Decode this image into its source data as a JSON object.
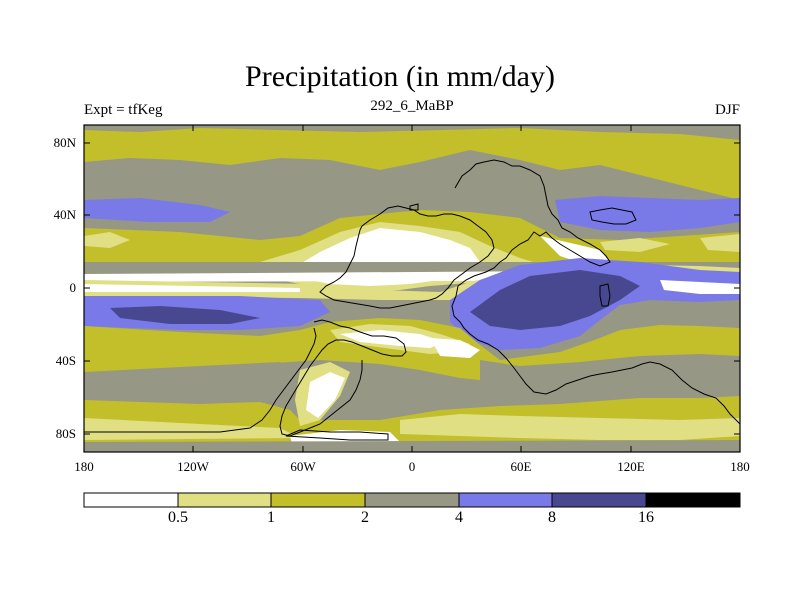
{
  "title": "Precipitation (in mm/day)",
  "experiment_label": "Expt = tfKeg",
  "case_label": "292_6_MaBP",
  "season_label": "DJF",
  "map": {
    "projection": "cylindrical equidistant",
    "lon_range": [
      -180,
      180
    ],
    "lat_range": [
      -90,
      90
    ],
    "x_ticks": [
      "180",
      "120W",
      "60W",
      "0",
      "60E",
      "120E",
      "180"
    ],
    "y_ticks": [
      "80N",
      "40N",
      "0",
      "40S",
      "80S"
    ]
  },
  "colorbar": {
    "levels": [
      "0.5",
      "1",
      "2",
      "4",
      "8",
      "16"
    ],
    "colors": [
      "#ffffff",
      "#e0df84",
      "#c2bf2b",
      "#979785",
      "#7a79e8",
      "#484890",
      "#000000"
    ]
  }
}
